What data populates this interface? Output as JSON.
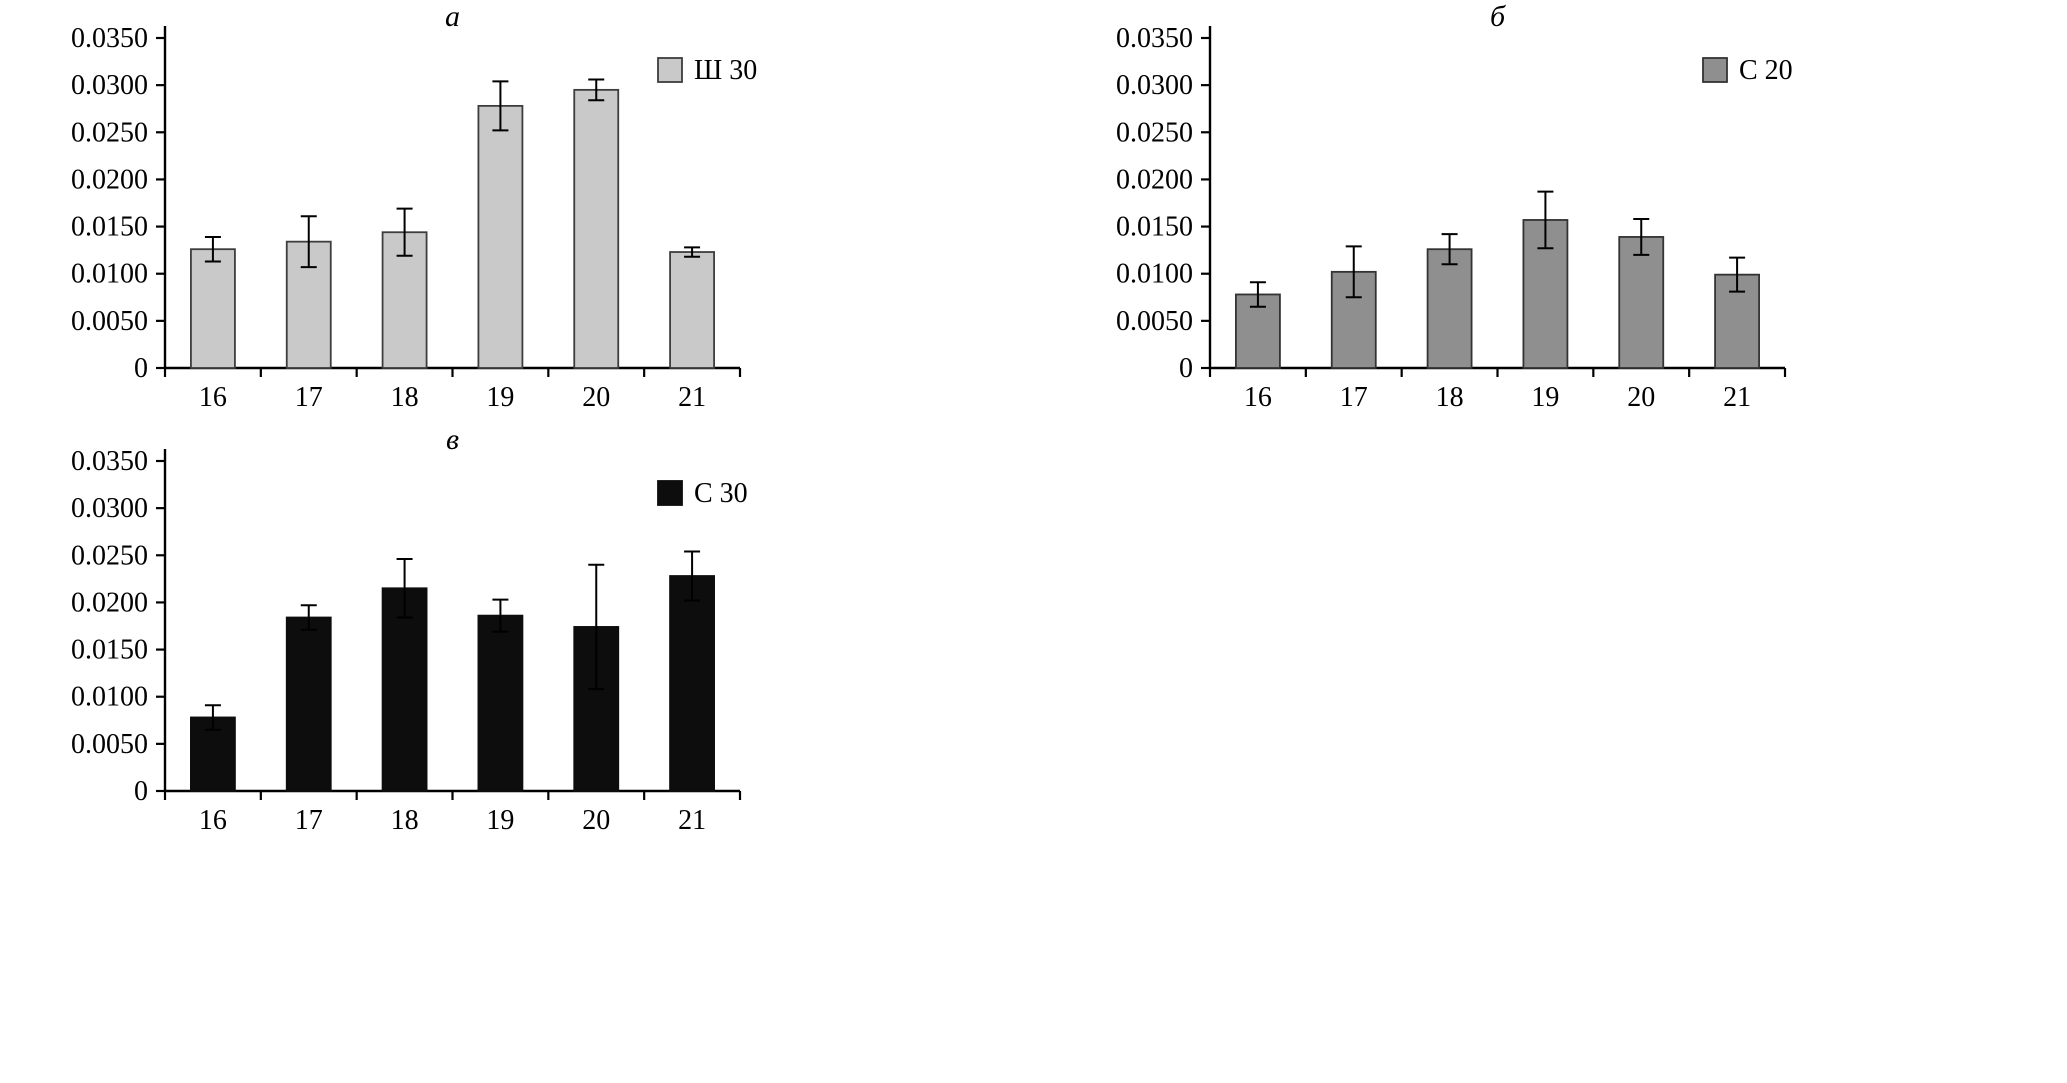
{
  "figure": {
    "background": "#ffffff",
    "axis_color": "#000000",
    "panel_count": 3
  },
  "chart_data": [
    {
      "id": "a",
      "type": "bar",
      "title": "а",
      "legend_label": "Ш 30",
      "bar_color": "#c9c9c9",
      "bar_border": "#3d3d3d",
      "categories": [
        "16",
        "17",
        "18",
        "19",
        "20",
        "21"
      ],
      "values": [
        0.0126,
        0.0134,
        0.0144,
        0.0278,
        0.0295,
        0.0123
      ],
      "errors": [
        0.0013,
        0.0027,
        0.0025,
        0.0026,
        0.0011,
        0.0005
      ],
      "xlabel": "",
      "ylabel": "",
      "ylim": [
        0,
        0.035
      ],
      "ytick_step": 0.005,
      "ytick_labels": [
        "0",
        "0.0050",
        "0.0100",
        "0.0150",
        "0.0200",
        "0.0250",
        "0.0300",
        "0.0350"
      ],
      "grid": false,
      "legend_position": "top-right-inside"
    },
    {
      "id": "b",
      "type": "bar",
      "title": "б",
      "legend_label": "С 20",
      "bar_color": "#8f8f8f",
      "bar_border": "#333333",
      "categories": [
        "16",
        "17",
        "18",
        "19",
        "20",
        "21"
      ],
      "values": [
        0.0078,
        0.0102,
        0.0126,
        0.0157,
        0.0139,
        0.0099
      ],
      "errors": [
        0.0013,
        0.0027,
        0.0016,
        0.003,
        0.0019,
        0.0018
      ],
      "xlabel": "",
      "ylabel": "",
      "ylim": [
        0,
        0.035
      ],
      "ytick_step": 0.005,
      "ytick_labels": [
        "0",
        "0.0050",
        "0.0100",
        "0.0150",
        "0.0200",
        "0.0250",
        "0.0300",
        "0.0350"
      ],
      "grid": false,
      "legend_position": "top-right-inside"
    },
    {
      "id": "v",
      "type": "bar",
      "title": "в",
      "legend_label": "С 30",
      "bar_color": "#0d0d0d",
      "bar_border": "#0d0d0d",
      "categories": [
        "16",
        "17",
        "18",
        "19",
        "20",
        "21"
      ],
      "values": [
        0.0078,
        0.0184,
        0.0215,
        0.0186,
        0.0174,
        0.0228
      ],
      "errors": [
        0.0013,
        0.0013,
        0.0031,
        0.0017,
        0.0066,
        0.0026
      ],
      "xlabel": "",
      "ylabel": "",
      "ylim": [
        0,
        0.035
      ],
      "ytick_step": 0.005,
      "ytick_labels": [
        "0",
        "0.0050",
        "0.0100",
        "0.0150",
        "0.0200",
        "0.0250",
        "0.0300",
        "0.0350"
      ],
      "grid": false,
      "legend_position": "top-right-inside"
    }
  ]
}
